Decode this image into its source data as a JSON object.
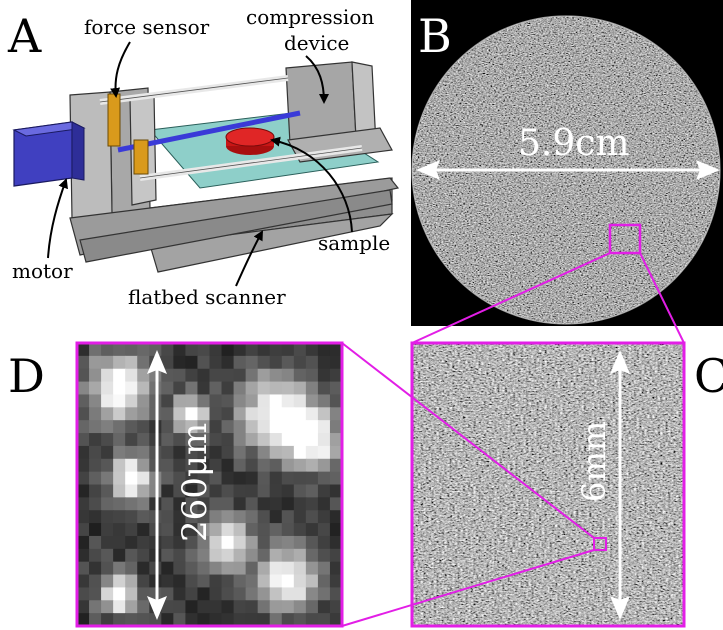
{
  "colors": {
    "magenta": "#e21ee6",
    "motor_blue": "#4343c8",
    "sensor_orange": "#d99a1c",
    "tray_teal": "#8ecfc9",
    "sample_red": "#d81c1c",
    "frame_gray": "#9a9a9a"
  },
  "panels": {
    "a": {
      "letter": "A",
      "labels": {
        "force_sensor": "force sensor",
        "compression_1": "compression",
        "compression_2": "device",
        "sample": "sample",
        "motor": "motor",
        "scanner": "flatbed scanner"
      }
    },
    "b": {
      "letter": "B",
      "scale": "5.9cm"
    },
    "c": {
      "letter": "C",
      "scale": "6mm"
    },
    "d": {
      "letter": "D",
      "scale": "260μm"
    }
  }
}
